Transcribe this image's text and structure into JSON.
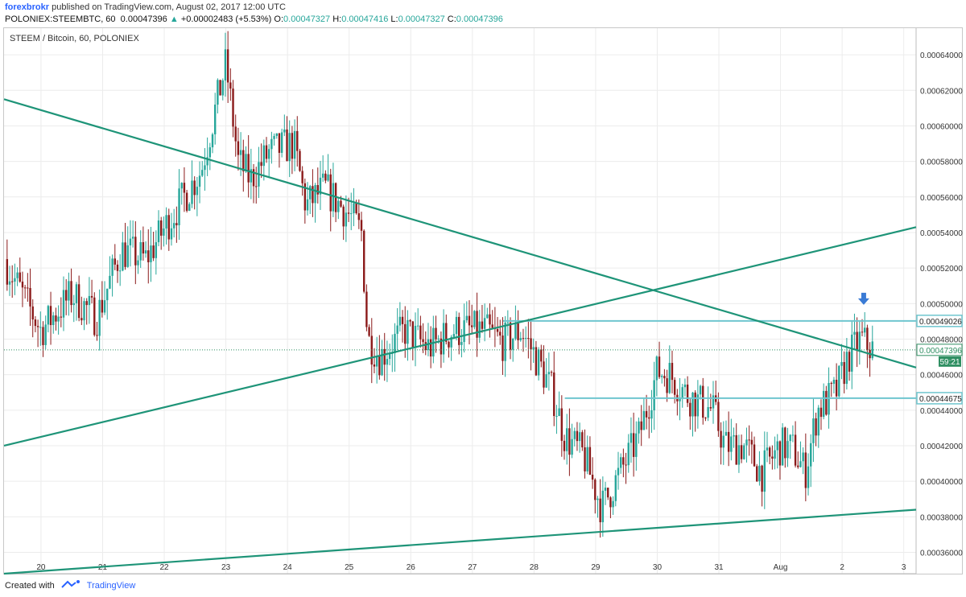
{
  "header": {
    "author": "forexbrokr",
    "published": "published on TradingView.com, August 02, 2017 12:00 UTC",
    "symbol": "POLONIEX:STEEMBTC, 60",
    "last": "0.00047396",
    "change": "+0.00002483 (+5.53%)",
    "o_label": "O:",
    "o_val": "0.00047327",
    "h_label": "H:",
    "h_val": "0.00047416",
    "l_label": "L:",
    "l_val": "0.00047327",
    "c_label": "C:",
    "c_val": "0.00047396"
  },
  "footer": {
    "created": "Created with",
    "brand": "TradingView"
  },
  "colors": {
    "up": "#26a69a",
    "down": "#8b1a1a",
    "trend": "#1e9478",
    "level": "#6fc6cf",
    "arrow": "#3a7bd5",
    "price": "#2f8f62"
  },
  "chart_data": {
    "type": "candlestick",
    "title": "STEEM / Bitcoin, 60, POLONIEX",
    "xlabel": "",
    "ylabel": "",
    "x_ticks": [
      "20",
      "21",
      "22",
      "23",
      "24",
      "25",
      "26",
      "27",
      "28",
      "29",
      "30",
      "31",
      "Aug",
      "2",
      "3"
    ],
    "y_ticks": [
      "0.00036000",
      "0.00038000",
      "0.00040000",
      "0.00042000",
      "0.00044000",
      "0.00046000",
      "0.00048000",
      "0.00050000",
      "0.00052000",
      "0.00054000",
      "0.00056000",
      "0.00058000",
      "0.00060000",
      "0.00062000",
      "0.00064000"
    ],
    "ylim": [
      0.000348,
      0.000655
    ],
    "xlim": [
      19.4,
      3.2
    ],
    "grid": true,
    "price_line": {
      "value": 0.00047396,
      "label": "0.00047396",
      "countdown": "59:21"
    },
    "levels": [
      {
        "value": 0.00049026,
        "label": "0.00049026",
        "x_start": 27.5
      },
      {
        "value": 0.00044675,
        "label": "0.00044675",
        "x_start": 28.5
      }
    ],
    "trendlines": [
      {
        "name": "descending",
        "from": [
          19.4,
          0.000615
        ],
        "to": [
          3.2,
          0.000464
        ]
      },
      {
        "name": "ascending",
        "from": [
          19.4,
          0.00042
        ],
        "to": [
          3.2,
          0.000543
        ]
      },
      {
        "name": "support",
        "from": [
          19.4,
          0.000348
        ],
        "to": [
          3.2,
          0.000384
        ]
      }
    ],
    "arrow": {
      "x": 2.35,
      "value": 0.000502
    },
    "path": [
      [
        19.4,
        0.000525
      ],
      [
        19.7,
        0.000505
      ],
      [
        20.0,
        0.000485
      ],
      [
        20.5,
        0.000505
      ],
      [
        20.9,
        0.000492
      ],
      [
        21.3,
        0.00053
      ],
      [
        21.7,
        0.000525
      ],
      [
        22.1,
        0.000548
      ],
      [
        22.6,
        0.000575
      ],
      [
        23.0,
        0.000635
      ],
      [
        23.2,
        0.00058
      ],
      [
        23.4,
        0.00057
      ],
      [
        23.7,
        0.000585
      ],
      [
        24.1,
        0.00059
      ],
      [
        24.3,
        0.000555
      ],
      [
        24.6,
        0.000565
      ],
      [
        25.0,
        0.00055
      ],
      [
        25.2,
        0.00054
      ],
      [
        25.3,
        0.00048
      ],
      [
        25.5,
        0.00047
      ],
      [
        25.9,
        0.000485
      ],
      [
        26.3,
        0.000475
      ],
      [
        26.7,
        0.000485
      ],
      [
        27.2,
        0.000485
      ],
      [
        27.5,
        0.000478
      ],
      [
        27.8,
        0.000485
      ],
      [
        28.1,
        0.000465
      ],
      [
        28.3,
        0.00045
      ],
      [
        28.5,
        0.000425
      ],
      [
        28.8,
        0.000415
      ],
      [
        29.1,
        0.000385
      ],
      [
        29.4,
        0.000405
      ],
      [
        29.7,
        0.000425
      ],
      [
        30.0,
        0.000462
      ],
      [
        30.2,
        0.00046
      ],
      [
        30.5,
        0.000448
      ],
      [
        30.9,
        0.00044
      ],
      [
        31.1,
        0.00042
      ],
      [
        31.4,
        0.00042
      ],
      [
        31.7,
        0.000405
      ],
      [
        32.0,
        0.00042
      ],
      [
        32.2,
        0.000418
      ],
      [
        32.4,
        0.000405
      ],
      [
        32.6,
        0.00044
      ],
      [
        32.9,
        0.00045
      ],
      [
        33.1,
        0.00047
      ],
      [
        33.3,
        0.00048
      ],
      [
        33.5,
        0.000474
      ]
    ]
  }
}
